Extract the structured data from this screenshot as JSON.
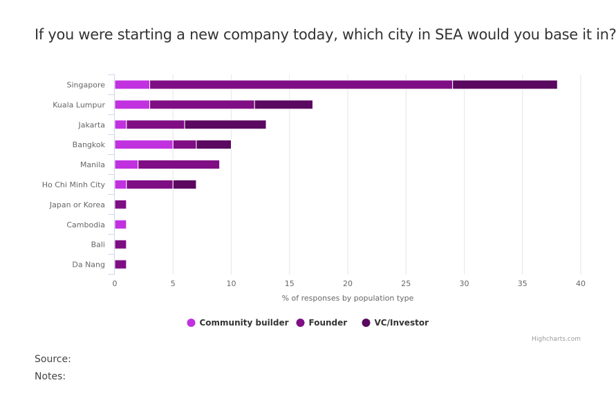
{
  "title": "If you were starting a new company today, which city in SEA would you base it in?",
  "credits": "Highcharts.com",
  "footer": {
    "source_label": "Source:",
    "notes_label": "Notes:"
  },
  "colors": {
    "Community builder": "#c131e0",
    "Founder": "#7f0e84",
    "VC/Investor": "#5a0860"
  },
  "chart_data": {
    "type": "bar",
    "stacked": true,
    "orientation": "horizontal",
    "title": "If you were starting a new company today, which city in SEA would you base it in?",
    "xlabel": "% of responses by population type",
    "ylabel": "",
    "xlim": [
      0,
      40
    ],
    "ticks": [
      0,
      5,
      10,
      15,
      20,
      25,
      30,
      35,
      40
    ],
    "grid": true,
    "legend": "bottom-center",
    "categories": [
      "Singapore",
      "Kuala Lumpur",
      "Jakarta",
      "Bangkok",
      "Manila",
      "Ho Chi Minh City",
      "Japan or Korea",
      "Cambodia",
      "Bali",
      "Da Nang"
    ],
    "series": [
      {
        "name": "Community builder",
        "values": [
          3,
          3,
          1,
          5,
          2,
          1,
          0,
          1,
          0,
          0
        ]
      },
      {
        "name": "Founder",
        "values": [
          26,
          9,
          5,
          2,
          7,
          4,
          1,
          0,
          1,
          1
        ]
      },
      {
        "name": "VC/Investor",
        "values": [
          9,
          5,
          7,
          3,
          0,
          2,
          0,
          0,
          0,
          0
        ]
      }
    ]
  }
}
